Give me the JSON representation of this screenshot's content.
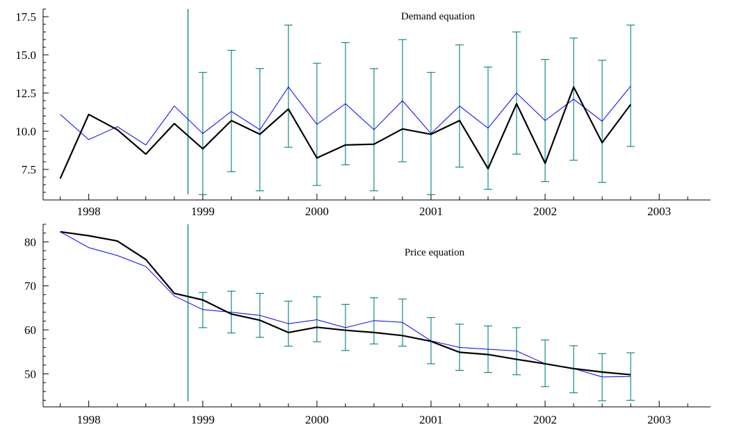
{
  "chart_data": [
    {
      "type": "line",
      "title": "Demand equation",
      "xlabel": "",
      "ylabel": "",
      "xlim": [
        1997.6,
        2003.45
      ],
      "ylim": [
        5.5,
        18
      ],
      "x_ticks": [
        "1998",
        "1999",
        "2000",
        "2001",
        "2002",
        "2003"
      ],
      "y_ticks": [
        "7.5",
        "10.0",
        "12.5",
        "15.0",
        "17.5"
      ],
      "forecast_start": 1998.87,
      "x": [
        1997.75,
        1998.0,
        1998.25,
        1998.5,
        1998.75,
        1999.0,
        1999.25,
        1999.5,
        1999.75,
        2000.0,
        2000.25,
        2000.5,
        2000.75,
        2001.0,
        2001.25,
        2001.5,
        2001.75,
        2002.0,
        2002.25,
        2002.5,
        2002.75
      ],
      "series": [
        {
          "name": "",
          "role": "actual",
          "color": "#000000",
          "values": [
            6.9,
            11.1,
            10.1,
            8.5,
            10.5,
            8.85,
            10.7,
            9.8,
            11.45,
            8.25,
            9.1,
            9.15,
            10.15,
            9.8,
            10.7,
            7.55,
            11.8,
            7.9,
            12.9,
            9.25,
            11.75
          ]
        },
        {
          "name": "",
          "role": "fitted",
          "color": "#0000ff",
          "values": [
            11.1,
            9.45,
            10.3,
            9.1,
            11.65,
            9.85,
            11.3,
            10.1,
            12.9,
            10.45,
            11.8,
            10.1,
            12.0,
            9.85,
            11.65,
            10.2,
            12.5,
            10.7,
            12.1,
            10.65,
            12.95
          ]
        }
      ],
      "error_bars": {
        "color": "#008080",
        "x": [
          1999.0,
          1999.25,
          1999.5,
          1999.75,
          2000.0,
          2000.25,
          2000.5,
          2000.75,
          2001.0,
          2001.25,
          2001.5,
          2001.75,
          2002.0,
          2002.25,
          2002.5,
          2002.75
        ],
        "low": [
          5.85,
          7.35,
          6.1,
          8.95,
          6.45,
          7.8,
          6.1,
          8.0,
          5.85,
          7.65,
          6.2,
          8.5,
          6.7,
          8.1,
          6.65,
          9.0
        ],
        "high": [
          13.85,
          15.3,
          14.1,
          16.95,
          14.45,
          15.8,
          14.1,
          16.0,
          13.85,
          15.65,
          14.2,
          16.5,
          14.7,
          16.1,
          14.65,
          16.95
        ]
      }
    },
    {
      "type": "line",
      "title": "Price equation",
      "xlabel": "",
      "ylabel": "",
      "xlim": [
        1997.6,
        2003.45
      ],
      "ylim": [
        42.5,
        84
      ],
      "x_ticks": [
        "1998",
        "1999",
        "2000",
        "2001",
        "2002",
        "2003"
      ],
      "y_ticks": [
        "50",
        "60",
        "70",
        "80"
      ],
      "forecast_start": 1998.87,
      "x": [
        1997.75,
        1998.0,
        1998.25,
        1998.5,
        1998.75,
        1999.0,
        1999.25,
        1999.5,
        1999.75,
        2000.0,
        2000.25,
        2000.5,
        2000.75,
        2001.0,
        2001.25,
        2001.5,
        2001.75,
        2002.0,
        2002.25,
        2002.5,
        2002.75
      ],
      "series": [
        {
          "name": "",
          "role": "actual",
          "color": "#000000",
          "values": [
            82.3,
            81.4,
            80.2,
            76.0,
            68.3,
            66.8,
            63.6,
            62.2,
            59.4,
            60.6,
            59.9,
            59.4,
            58.7,
            57.4,
            54.9,
            54.4,
            53.3,
            52.3,
            51.2,
            50.4,
            49.8
          ]
        },
        {
          "name": "",
          "role": "fitted",
          "color": "#0000ff",
          "values": [
            82.3,
            78.7,
            76.9,
            74.4,
            67.7,
            64.6,
            64.0,
            63.3,
            61.4,
            62.3,
            60.5,
            62.1,
            61.7,
            57.5,
            56.0,
            55.6,
            55.2,
            52.3,
            51.2,
            49.3,
            49.4
          ]
        }
      ],
      "error_bars": {
        "color": "#008080",
        "x": [
          1999.0,
          1999.25,
          1999.5,
          1999.75,
          2000.0,
          2000.25,
          2000.5,
          2000.75,
          2001.0,
          2001.25,
          2001.5,
          2001.75,
          2002.0,
          2002.25,
          2002.5,
          2002.75
        ],
        "low": [
          60.5,
          59.3,
          58.3,
          56.3,
          57.3,
          55.3,
          56.8,
          56.3,
          52.3,
          50.8,
          50.3,
          49.8,
          47.1,
          45.7,
          43.9,
          44.0
        ],
        "high": [
          68.5,
          68.8,
          68.3,
          66.5,
          67.5,
          65.8,
          67.3,
          67.0,
          62.8,
          61.3,
          60.9,
          60.5,
          57.7,
          56.4,
          54.6,
          54.8
        ]
      }
    }
  ]
}
